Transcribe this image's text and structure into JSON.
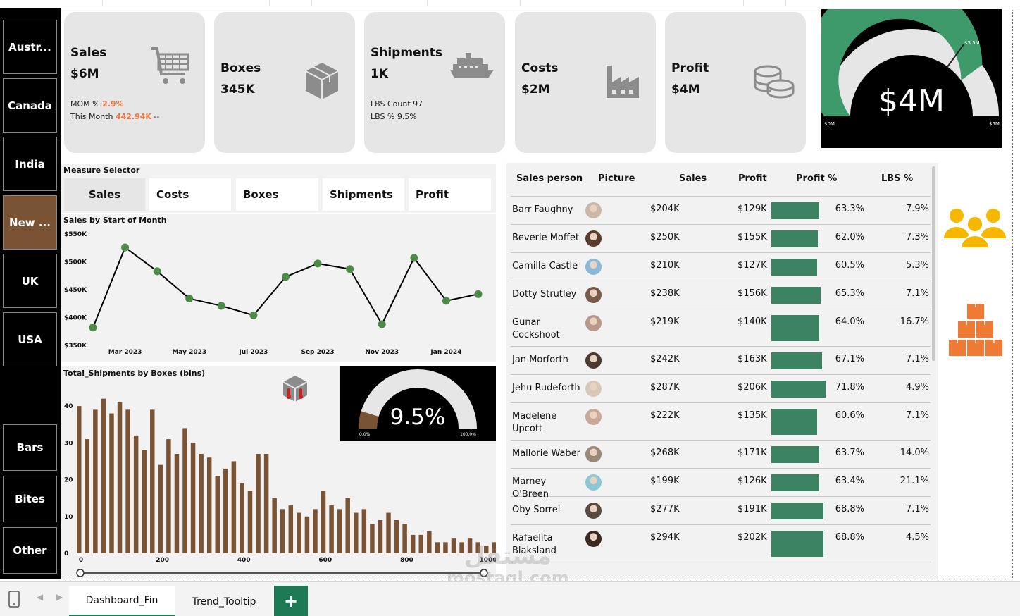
{
  "sidebar": {
    "regions": [
      {
        "label": "Austr...",
        "selected": false
      },
      {
        "label": "Canada",
        "selected": false
      },
      {
        "label": "India",
        "selected": false
      },
      {
        "label": "New ...",
        "selected": true
      },
      {
        "label": "UK",
        "selected": false
      },
      {
        "label": "USA",
        "selected": false
      }
    ],
    "categories": [
      "Bars",
      "Bites",
      "Other"
    ]
  },
  "kpis": [
    {
      "title": "Sales",
      "value": "$6M",
      "sub1_label": "MOM % ",
      "sub1_value": "2.9%",
      "sub2_label": "This Month ",
      "sub2_value": "442.94K",
      "sub2_suffix": " --",
      "icon": "cart-icon"
    },
    {
      "title": "Boxes",
      "value": "345K",
      "icon": "box-icon"
    },
    {
      "title": "Shipments",
      "value": "1K",
      "sub1_label": "LBS Count 97",
      "sub2_label": "LBS % 9.5%",
      "icon": "ship-icon"
    },
    {
      "title": "Costs",
      "value": "$2M",
      "icon": "factory-icon"
    },
    {
      "title": "Profit",
      "value": "$4M",
      "icon": "coins-icon"
    }
  ],
  "profit_gauge": {
    "value_label": "$4M",
    "target_label": "$3.5M",
    "min_label": "$0M",
    "max_label": "$5M",
    "value": 4,
    "target": 3.5,
    "min": 0,
    "max": 5,
    "fill_color": "#3f9a6b"
  },
  "measure_selector": {
    "title": "Measure Selector",
    "options": [
      "Sales",
      "Costs",
      "Boxes",
      "Shipments",
      "Profit"
    ],
    "selected": "Sales"
  },
  "chart_data": [
    {
      "type": "line",
      "title": "Sales by Start of Month",
      "x": [
        "Feb 2023",
        "Mar 2023",
        "Apr 2023",
        "May 2023",
        "Jun 2023",
        "Jul 2023",
        "Aug 2023",
        "Sep 2023",
        "Oct 2023",
        "Nov 2023",
        "Dec 2023",
        "Jan 2024",
        "Feb 2024"
      ],
      "x_tick_labels": [
        "Mar 2023",
        "May 2023",
        "Jul 2023",
        "Sep 2023",
        "Nov 2023",
        "Jan 2024"
      ],
      "values": [
        382000,
        526000,
        483000,
        434000,
        421000,
        404000,
        473000,
        497000,
        487000,
        388000,
        507000,
        430000,
        442000
      ],
      "y_tick_labels": [
        "$550K",
        "$500K",
        "$450K",
        "$400K",
        "$350K"
      ],
      "ylim": [
        350000,
        550000
      ],
      "line_color": "#000000",
      "marker_color": "#4e8a47"
    },
    {
      "type": "bar",
      "title": "Total_Shipments by Boxes (bins)",
      "bin_start": 0,
      "bin_width": 20,
      "values": [
        40,
        31,
        39,
        42,
        38,
        41,
        39,
        32,
        28,
        39,
        24,
        31,
        27,
        34,
        30,
        27,
        26,
        21,
        23,
        25,
        19,
        17,
        27,
        27,
        15,
        12,
        13,
        11,
        10,
        12,
        17,
        13,
        12,
        15,
        11,
        12,
        8,
        9,
        11,
        9,
        8,
        5,
        5,
        6,
        3,
        3,
        4,
        3,
        4,
        3,
        2,
        3,
        1,
        1,
        7,
        3,
        3
      ],
      "x_tick_labels": [
        "0",
        "200",
        "400",
        "600",
        "800",
        "1000"
      ],
      "xlim": [
        0,
        1000
      ],
      "y_tick_labels": [
        "40",
        "30",
        "20",
        "10",
        "0"
      ],
      "ylim": [
        0,
        45
      ],
      "bar_color": "#7a5234"
    }
  ],
  "lbs_gauge": {
    "value_label": "9.5%",
    "min_label": "0.0%",
    "max_label": "100.0%",
    "value": 9.5,
    "fill_color": "#7a5234"
  },
  "sales_table": {
    "headers": [
      "Sales person",
      "Picture",
      "Sales",
      "Profit",
      "Profit %",
      "LBS %"
    ],
    "rows": [
      {
        "name": "Barr Faughny",
        "sales": "$204K",
        "profit": "$129K",
        "profit_pct": "63.3%",
        "profit_pct_value": 63.3,
        "lbs_pct": "7.9%",
        "avatar_color": "#c9b8a8"
      },
      {
        "name": "Beverie Moffet",
        "sales": "$250K",
        "profit": "$155K",
        "profit_pct": "62.0%",
        "profit_pct_value": 62.0,
        "lbs_pct": "7.3%",
        "avatar_color": "#5a3a2a"
      },
      {
        "name": "Camilla Castle",
        "sales": "$210K",
        "profit": "$127K",
        "profit_pct": "60.5%",
        "profit_pct_value": 60.5,
        "lbs_pct": "5.3%",
        "avatar_color": "#8ab8d8"
      },
      {
        "name": "Dotty Strutley",
        "sales": "$238K",
        "profit": "$156K",
        "profit_pct": "65.3%",
        "profit_pct_value": 65.3,
        "lbs_pct": "7.1%",
        "avatar_color": "#7a5a48"
      },
      {
        "name": "Gunar Cockshoot",
        "sales": "$219K",
        "profit": "$140K",
        "profit_pct": "64.0%",
        "profit_pct_value": 64.0,
        "lbs_pct": "16.7%",
        "avatar_color": "#b89888"
      },
      {
        "name": "Jan Morforth",
        "sales": "$242K",
        "profit": "$163K",
        "profit_pct": "67.1%",
        "profit_pct_value": 67.1,
        "lbs_pct": "7.1%",
        "avatar_color": "#4a3a30"
      },
      {
        "name": "Jehu Rudeforth",
        "sales": "$287K",
        "profit": "$206K",
        "profit_pct": "71.8%",
        "profit_pct_value": 71.8,
        "lbs_pct": "4.9%",
        "avatar_color": "#d8c8b8"
      },
      {
        "name": "Madelene Upcott",
        "sales": "$222K",
        "profit": "$135K",
        "profit_pct": "60.6%",
        "profit_pct_value": 60.6,
        "lbs_pct": "7.1%",
        "avatar_color": "#c8a898"
      },
      {
        "name": "Mallorie Waber",
        "sales": "$268K",
        "profit": "$171K",
        "profit_pct": "63.7%",
        "profit_pct_value": 63.7,
        "lbs_pct": "14.0%",
        "avatar_color": "#9a8878"
      },
      {
        "name": "Marney O'Breen",
        "sales": "$199K",
        "profit": "$126K",
        "profit_pct": "63.4%",
        "profit_pct_value": 63.4,
        "lbs_pct": "21.1%",
        "avatar_color": "#8ac8d8"
      },
      {
        "name": "Oby Sorrel",
        "sales": "$277K",
        "profit": "$191K",
        "profit_pct": "68.8%",
        "profit_pct_value": 68.8,
        "lbs_pct": "7.1%",
        "avatar_color": "#5a4a40"
      },
      {
        "name": "Rafaelita Blaksland",
        "sales": "$294K",
        "profit": "$202K",
        "profit_pct": "68.8%",
        "profit_pct_value": 68.8,
        "lbs_pct": "4.5%",
        "avatar_color": "#3a2a20"
      }
    ]
  },
  "right_icons": [
    "people-icon",
    "boxes-stack-icon"
  ],
  "sheet_tabs": {
    "tabs": [
      "Dashboard_Fin",
      "Trend_Tooltip"
    ],
    "active": "Dashboard_Fin",
    "add_label": "+"
  },
  "watermark": {
    "arabic": "مستقل",
    "latin": "mostaql.com"
  }
}
